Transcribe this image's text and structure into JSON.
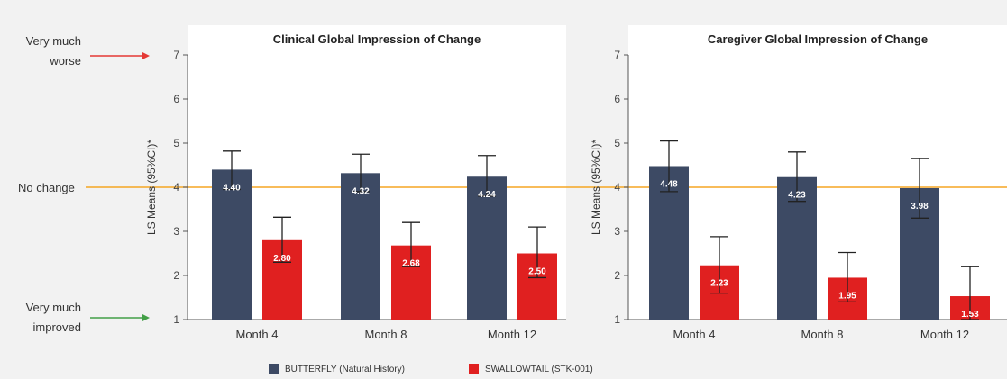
{
  "colors": {
    "butterfly": "#3d4a64",
    "swallowtail": "#e02020",
    "no_change_line": "#f5a623",
    "arrow_worse": "#e53935",
    "arrow_improved": "#43a047",
    "panel_bg": "#ffffff"
  },
  "side_labels": {
    "worse_line1": "Very much",
    "worse_line2": "worse",
    "no_change": "No change",
    "improved_line1": "Very much",
    "improved_line2": "improved"
  },
  "legend": [
    {
      "name": "BUTTERFLY (Natural History)",
      "color_key": "butterfly"
    },
    {
      "name": "SWALLOWTAIL (STK-001)",
      "color_key": "swallowtail"
    }
  ],
  "chart_data": [
    {
      "type": "bar",
      "title": "Clinical Global Impression of Change",
      "ylabel": "LS Means (95%CI)*",
      "ylim": [
        1,
        7
      ],
      "yticks": [
        "1",
        "2",
        "3",
        "4",
        "5",
        "6",
        "7"
      ],
      "reference_line": 4,
      "categories": [
        "Month 4",
        "Month 8",
        "Month 12"
      ],
      "series": [
        {
          "name": "BUTTERFLY (Natural History)",
          "color_key": "butterfly",
          "values": [
            4.4,
            4.32,
            4.24
          ],
          "labels": [
            "4.40",
            "4.32",
            "4.24"
          ],
          "ci_low": [
            3.95,
            3.9,
            3.8
          ],
          "ci_high": [
            4.82,
            4.75,
            4.72
          ]
        },
        {
          "name": "SWALLOWTAIL (STK-001)",
          "color_key": "swallowtail",
          "values": [
            2.8,
            2.68,
            2.5
          ],
          "labels": [
            "2.80",
            "2.68",
            "2.50"
          ],
          "ci_low": [
            2.3,
            2.2,
            1.95
          ],
          "ci_high": [
            3.32,
            3.2,
            3.1
          ]
        }
      ]
    },
    {
      "type": "bar",
      "title": "Caregiver Global Impression of Change",
      "ylabel": "LS Means (95%CI)*",
      "ylim": [
        1,
        7
      ],
      "yticks": [
        "1",
        "2",
        "3",
        "4",
        "5",
        "6",
        "7"
      ],
      "reference_line": 4,
      "categories": [
        "Month 4",
        "Month 8",
        "Month 12"
      ],
      "series": [
        {
          "name": "BUTTERFLY (Natural History)",
          "color_key": "butterfly",
          "values": [
            4.48,
            4.23,
            3.98
          ],
          "labels": [
            "4.48",
            "4.23",
            "3.98"
          ],
          "ci_low": [
            3.9,
            3.68,
            3.3
          ],
          "ci_high": [
            5.05,
            4.8,
            4.65
          ]
        },
        {
          "name": "SWALLOWTAIL (STK-001)",
          "color_key": "swallowtail",
          "values": [
            2.23,
            1.95,
            1.53
          ],
          "labels": [
            "2.23",
            "1.95",
            "1.53"
          ],
          "ci_low": [
            1.6,
            1.4,
            1.0
          ],
          "ci_high": [
            2.88,
            2.52,
            2.2
          ]
        }
      ]
    }
  ]
}
